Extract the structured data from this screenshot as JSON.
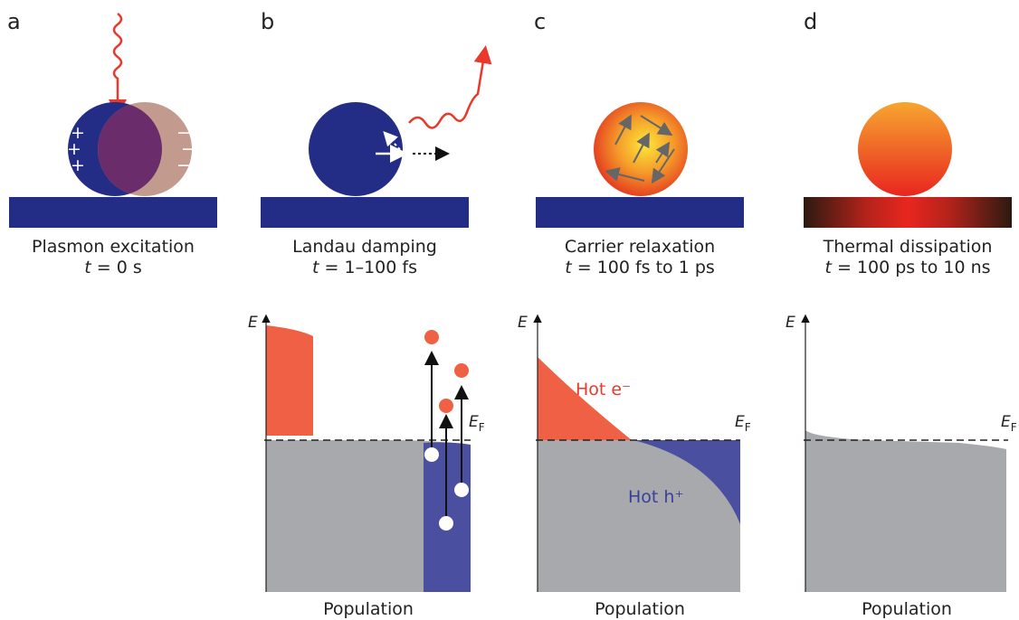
{
  "panels": [
    {
      "label": "a",
      "title": "Plasmon excitation",
      "time": {
        "var": "t",
        "rest": " = 0 s"
      }
    },
    {
      "label": "b",
      "title": "Landau damping",
      "time": {
        "var": "t",
        "rest": " = 1–100 fs"
      }
    },
    {
      "label": "c",
      "title": "Carrier relaxation",
      "time": {
        "var": "t",
        "rest": " = 100 fs to 1 ps"
      }
    },
    {
      "label": "d",
      "title": "Thermal dissipation",
      "time": {
        "var": "t",
        "rest": " = 100 ps to 10 ns"
      }
    }
  ],
  "charges": {
    "plus": "+",
    "minus": "−"
  },
  "plots": [
    {
      "axis": "E",
      "fermi": {
        "main": "E",
        "sub": "F"
      },
      "xlabel": "Population"
    },
    {
      "axis": "E",
      "fermi": {
        "main": "E",
        "sub": "F"
      },
      "xlabel": "Population"
    },
    {
      "axis": "E",
      "fermi": {
        "main": "E",
        "sub": "F"
      },
      "xlabel": "Population"
    }
  ],
  "annotations": {
    "hot_electron": "Hot e⁻",
    "hot_hole": "Hot h⁺"
  }
}
